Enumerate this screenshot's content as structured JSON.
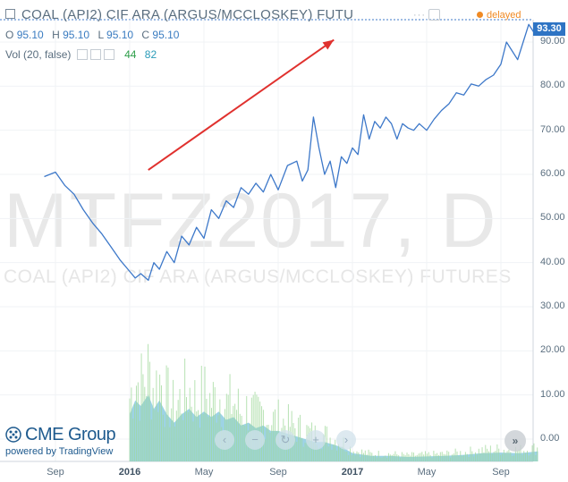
{
  "header": {
    "title": "COAL (API2) CIF ARA (ARGUS/MCCLOSKEY) FUTU",
    "dots": "···",
    "status": "delayed"
  },
  "ohlc": {
    "o_label": "O",
    "o_value": "95.10",
    "h_label": "H",
    "h_value": "95.10",
    "l_label": "L",
    "l_value": "95.10",
    "c_label": "C",
    "c_value": "95.10"
  },
  "volume": {
    "label": "Vol (20, false)",
    "value1": "44",
    "value2": "82"
  },
  "watermark": {
    "symbol": "MTFZ2017, D",
    "name": "COAL (API2) CIF ARA (ARGUS/MCCLOSKEY) FUTURES"
  },
  "price_tag": "93.30",
  "branding": {
    "name": "CME Group",
    "powered_by": "powered by TradingView"
  },
  "nav": {
    "prev": "‹",
    "zoom_out": "−",
    "reset": "↻",
    "zoom_in": "+",
    "next": "›",
    "scroll_right": "»"
  },
  "colors": {
    "line": "#3d78c9",
    "arrow": "#e0312e",
    "volume_fill": "#8ccbe0",
    "volume_bars": "#9fd89a",
    "price_tag": "#2e74c4",
    "delayed": "#f08a24"
  },
  "chart_data": {
    "type": "line",
    "title": "COAL (API2) CIF ARA (ARGUS/MCCLOSKEY) FUTU",
    "ylim": [
      -3,
      96
    ],
    "y_ticks": [
      0,
      10,
      20,
      30,
      40,
      50,
      60,
      70,
      80,
      90
    ],
    "y_tick_labels": [
      "0.00",
      "10.00",
      "20.00",
      "30.00",
      "40.00",
      "50.00",
      "60.00",
      "70.00",
      "80.00",
      "90.00"
    ],
    "x_ticks": [
      {
        "label": "Sep",
        "month_index": 0,
        "bold": false
      },
      {
        "label": "2016",
        "month_index": 4,
        "bold": true
      },
      {
        "label": "May",
        "month_index": 8,
        "bold": false
      },
      {
        "label": "Sep",
        "month_index": 12,
        "bold": false
      },
      {
        "label": "2017",
        "month_index": 16,
        "bold": true
      },
      {
        "label": "May",
        "month_index": 20,
        "bold": false
      },
      {
        "label": "Sep",
        "month_index": 24,
        "bold": false
      }
    ],
    "x_range_months": [
      -0.6,
      26.0
    ],
    "series": [
      {
        "x": [
          -0.6,
          0.0,
          0.5,
          1.0,
          1.5,
          2.0,
          2.5,
          3.0,
          3.5,
          4.0,
          4.3,
          4.6,
          5.0,
          5.3,
          5.6,
          6.0,
          6.4,
          6.8,
          7.2,
          7.6,
          8.0,
          8.4,
          8.8,
          9.2,
          9.6,
          10.0,
          10.4,
          10.8,
          11.2,
          11.6,
          12.0,
          12.5,
          13.0,
          13.3,
          13.6,
          13.9,
          14.2,
          14.5,
          14.8,
          15.1,
          15.4,
          15.7,
          16.0,
          16.3,
          16.6,
          16.9,
          17.2,
          17.5,
          17.8,
          18.1,
          18.4,
          18.7,
          19.0,
          19.3,
          19.6,
          20.0,
          20.4,
          20.8,
          21.2,
          21.6,
          22.0,
          22.4,
          22.8,
          23.2,
          23.6,
          24.0,
          24.3,
          24.6,
          24.9,
          25.2,
          25.5,
          25.8,
          26.0
        ],
        "y": [
          59.5,
          60.5,
          57.5,
          55.5,
          52.0,
          49.0,
          46.5,
          43.5,
          40.5,
          38.0,
          36.5,
          37.5,
          36.0,
          40.0,
          38.5,
          42.5,
          40.0,
          46.0,
          44.0,
          48.0,
          45.5,
          52.0,
          50.0,
          54.0,
          52.5,
          57.0,
          55.5,
          58.0,
          56.0,
          60.0,
          56.5,
          62.0,
          63.0,
          58.5,
          61.0,
          73.0,
          66.0,
          60.0,
          63.0,
          57.0,
          64.0,
          62.5,
          66.0,
          64.5,
          73.5,
          68.0,
          72.0,
          70.5,
          73.0,
          71.5,
          68.0,
          71.5,
          70.5,
          70.0,
          71.5,
          70.0,
          72.5,
          74.5,
          76.0,
          78.5,
          78.0,
          80.5,
          80.0,
          81.5,
          82.5,
          85.0,
          90.0,
          88.0,
          86.0,
          90.0,
          94.0,
          92.0,
          93.3
        ]
      }
    ],
    "volume": {
      "x": [
        4.0,
        4.3,
        4.6,
        5.0,
        5.3,
        5.6,
        6.0,
        6.4,
        6.8,
        7.2,
        7.6,
        8.0,
        8.4,
        8.8,
        9.2,
        9.6,
        10.0,
        10.4,
        10.8,
        11.2,
        11.6,
        12.0,
        12.5,
        13.0,
        13.5,
        14.0,
        14.5,
        15.0,
        15.5,
        16.0,
        17.0,
        18.0,
        19.0,
        20.0,
        21.0,
        22.0,
        23.0,
        24.0,
        25.0,
        26.0
      ],
      "values": [
        8.5,
        11.0,
        10.0,
        12.0,
        9.5,
        11.0,
        8.5,
        7.0,
        8.5,
        9.5,
        8.0,
        9.0,
        8.0,
        9.0,
        7.5,
        8.0,
        6.5,
        7.0,
        6.0,
        6.5,
        5.5,
        5.5,
        5.0,
        4.5,
        4.0,
        3.5,
        3.5,
        3.0,
        2.5,
        1.5,
        1.0,
        1.0,
        0.8,
        0.9,
        1.0,
        1.2,
        1.5,
        1.6,
        1.5,
        1.8
      ]
    },
    "annotations": [
      {
        "type": "arrow",
        "from": [
          5.0,
          61.0
        ],
        "to": [
          15.0,
          90.5
        ]
      }
    ],
    "last_price": 93.3,
    "grid": true
  }
}
